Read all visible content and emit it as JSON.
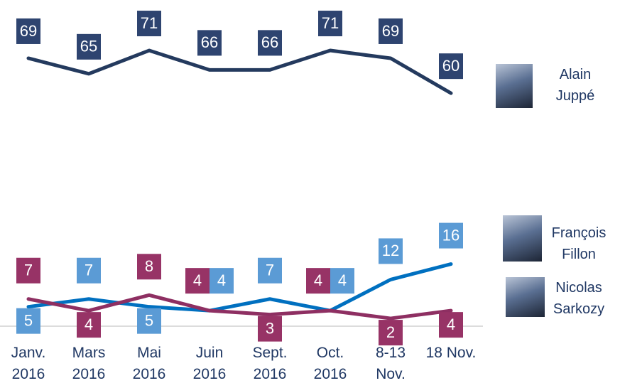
{
  "chart_data": {
    "type": "line",
    "categories": [
      "Janv. 2016",
      "Mars 2016",
      "Mai 2016",
      "Juin 2016",
      "Sept. 2016",
      "Oct. 2016",
      "8-13 Nov.",
      "18 Nov."
    ],
    "series": [
      {
        "name": "Alain Juppé",
        "color": "#243a5e",
        "label_color": "#2e4470",
        "values": [
          69,
          65,
          71,
          66,
          66,
          71,
          69,
          60
        ]
      },
      {
        "name": "François Fillon",
        "color": "#0070c0",
        "label_color": "#5b9bd5",
        "values": [
          5,
          7,
          5,
          4,
          7,
          4,
          12,
          16
        ]
      },
      {
        "name": "Nicolas Sarkozy",
        "color": "#8e2f62",
        "label_color": "#973366",
        "values": [
          7,
          4,
          8,
          4,
          3,
          4,
          2,
          4
        ]
      }
    ],
    "ylim": [
      0,
      84
    ]
  }
}
